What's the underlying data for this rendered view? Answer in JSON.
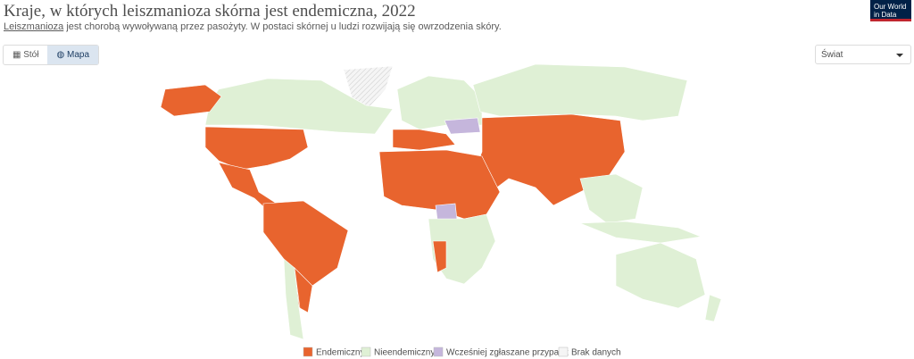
{
  "header": {
    "title": "Kraje, w których leiszmanioza skórna jest endemiczna, 2022",
    "subtitle_link": "Leiszmanioza",
    "subtitle_rest": " jest chorobą wywoływaną przez pasożyty. W postaci skórnej u ludzi rozwijają się owrzodzenia skóry.",
    "logo": [
      "Our World",
      "in Data"
    ]
  },
  "controls": {
    "tabs": [
      "Stół",
      "Mapa"
    ],
    "region": "Świat"
  },
  "legend": [
    {
      "name": "Endemiczny",
      "color": "#e8642e"
    },
    {
      "name": "Nieendemiczny",
      "color": "#dff0d5"
    },
    {
      "name": "Wcześniej zgłaszane przypadk",
      "color": "#c5b6dc"
    },
    {
      "name": "Brak danych",
      "color": "#f5f5f5"
    }
  ]
}
